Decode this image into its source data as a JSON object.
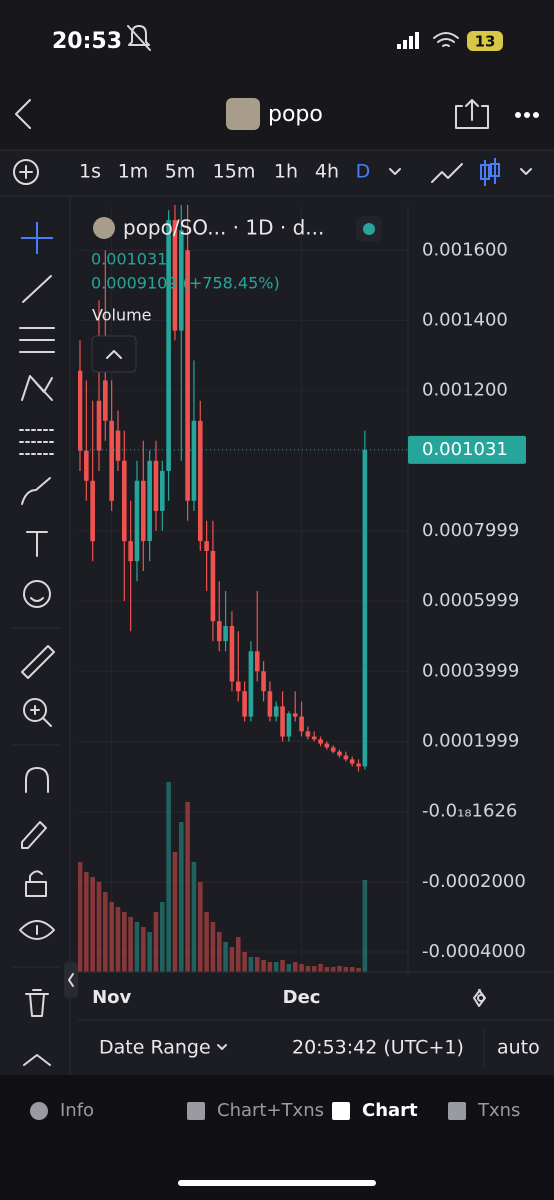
{
  "status": {
    "time": "20:53",
    "battery": "13"
  },
  "header": {
    "title": "popo"
  },
  "toolbar": {
    "intervals": [
      "1s",
      "1m",
      "5m",
      "15m",
      "1h",
      "4h",
      "D"
    ]
  },
  "legend": {
    "symbol": "popo/SO... · 1D · d...",
    "price": "0.001031",
    "change": "0.0009109 (+758.45%)",
    "volume_label": "Volume"
  },
  "chart_data": {
    "type": "candlestick",
    "categories": [
      null,
      null,
      null,
      null,
      null,
      "Nov",
      null,
      null,
      null,
      null,
      null,
      null,
      null,
      null,
      null,
      null,
      null,
      null,
      null,
      null,
      null,
      null,
      null,
      null,
      null,
      null,
      null,
      null,
      null,
      null,
      null,
      null,
      null,
      null,
      null,
      "Dec",
      null,
      null,
      null,
      null,
      null,
      null,
      null,
      null,
      null,
      null
    ],
    "open": [
      0.001257,
      0.001029,
      0.000943,
      0.001171,
      0.001229,
      0.001114,
      0.001086,
      0.001,
      0.000771,
      0.000714,
      0.000943,
      0.000771,
      0.001,
      0.000857,
      0.000971,
      0.001686,
      0.001371,
      0.0016,
      0.000886,
      0.001114,
      0.000771,
      0.000743,
      0.000543,
      0.000486,
      0.000529,
      0.000371,
      0.000343,
      0.000271,
      0.000457,
      0.0004,
      0.000343,
      0.000271,
      0.0003,
      0.000214,
      0.00028,
      0.000271,
      0.000229,
      0.000214,
      0.000206,
      0.000194,
      0.000183,
      0.000171,
      0.00016,
      0.000149,
      0.000137,
      0.000129
    ],
    "high": [
      0.001343,
      0.001229,
      0.001171,
      0.001457,
      0.0016,
      0.001229,
      0.001143,
      0.001086,
      0.000886,
      0.001,
      0.001057,
      0.001029,
      0.001057,
      0.001,
      0.001714,
      0.001729,
      0.001729,
      0.001729,
      0.001286,
      0.001171,
      0.000829,
      0.000829,
      0.000657,
      0.000629,
      0.000571,
      0.000514,
      0.000371,
      0.000486,
      0.000629,
      0.000429,
      0.000371,
      0.000314,
      0.000343,
      0.000286,
      0.000343,
      0.000314,
      0.000243,
      0.000229,
      0.000214,
      0.0002,
      0.000189,
      0.000177,
      0.000171,
      0.000157,
      0.000149,
      0.001086
    ],
    "low": [
      0.000971,
      0.000886,
      0.000714,
      0.000971,
      0.001057,
      0.000857,
      0.000971,
      0.0006,
      0.000514,
      0.000657,
      0.000686,
      0.000714,
      0.0008,
      0.0008,
      0.000886,
      0.001343,
      0.001,
      0.000829,
      0.000857,
      0.000743,
      0.000629,
      0.000486,
      0.000457,
      0.000457,
      0.000343,
      0.000314,
      0.000257,
      0.000257,
      0.000371,
      0.000314,
      0.000257,
      0.000257,
      0.0002,
      0.0002,
      0.000257,
      0.000214,
      0.000206,
      0.0002,
      0.000186,
      0.000177,
      0.000166,
      0.000154,
      0.000143,
      0.000129,
      0.000114,
      0.00012
    ],
    "close": [
      0.001029,
      0.000943,
      0.000771,
      0.001029,
      0.001114,
      0.000886,
      0.001,
      0.000771,
      0.000714,
      0.000943,
      0.000771,
      0.001,
      0.000857,
      0.000971,
      0.001686,
      0.001371,
      0.001657,
      0.000886,
      0.001114,
      0.000771,
      0.000743,
      0.000543,
      0.000486,
      0.000529,
      0.000371,
      0.000343,
      0.000271,
      0.000457,
      0.0004,
      0.000343,
      0.000271,
      0.0003,
      0.000214,
      0.00028,
      0.000271,
      0.000229,
      0.000214,
      0.000206,
      0.000194,
      0.000183,
      0.000171,
      0.00016,
      0.000149,
      0.000137,
      0.000129,
      0.001031
    ],
    "volume": [
      110,
      100,
      95,
      90,
      80,
      70,
      65,
      60,
      55,
      50,
      45,
      40,
      60,
      70,
      190,
      120,
      150,
      170,
      110,
      90,
      60,
      50,
      40,
      30,
      25,
      35,
      20,
      15,
      15,
      12,
      10,
      10,
      12,
      8,
      10,
      8,
      6,
      6,
      8,
      5,
      5,
      6,
      5,
      5,
      4,
      92
    ],
    "volume_ylim": [
      0,
      200
    ],
    "ylim": [
      -0.000457,
      0.001729
    ],
    "yticks": [
      {
        "value": 0.0016,
        "label": "0.001600"
      },
      {
        "value": 0.0014,
        "label": "0.001400"
      },
      {
        "value": 0.0012,
        "label": "0.001200"
      },
      {
        "value": 0.0008,
        "label": "0.0007999"
      },
      {
        "value": 0.0006,
        "label": "0.0005999"
      },
      {
        "value": 0.0004,
        "label": "0.0003999"
      },
      {
        "value": 0.0002,
        "label": "0.0001999"
      },
      {
        "value": -1.626e-19,
        "label": "-0.0₁₈1626"
      },
      {
        "value": -0.0002,
        "label": "-0.0002000"
      },
      {
        "value": -0.0004,
        "label": "-0.0004000"
      }
    ],
    "last_price": 0.001031,
    "grid": true,
    "up_color": "#26a69a",
    "down_color": "#ef5350"
  },
  "footer": {
    "date_range": "Date Range",
    "time": "20:53:42 (UTC+1)",
    "scale": "auto"
  },
  "tabs": [
    "Info",
    "Chart+Txns",
    "Chart",
    "Txns"
  ]
}
